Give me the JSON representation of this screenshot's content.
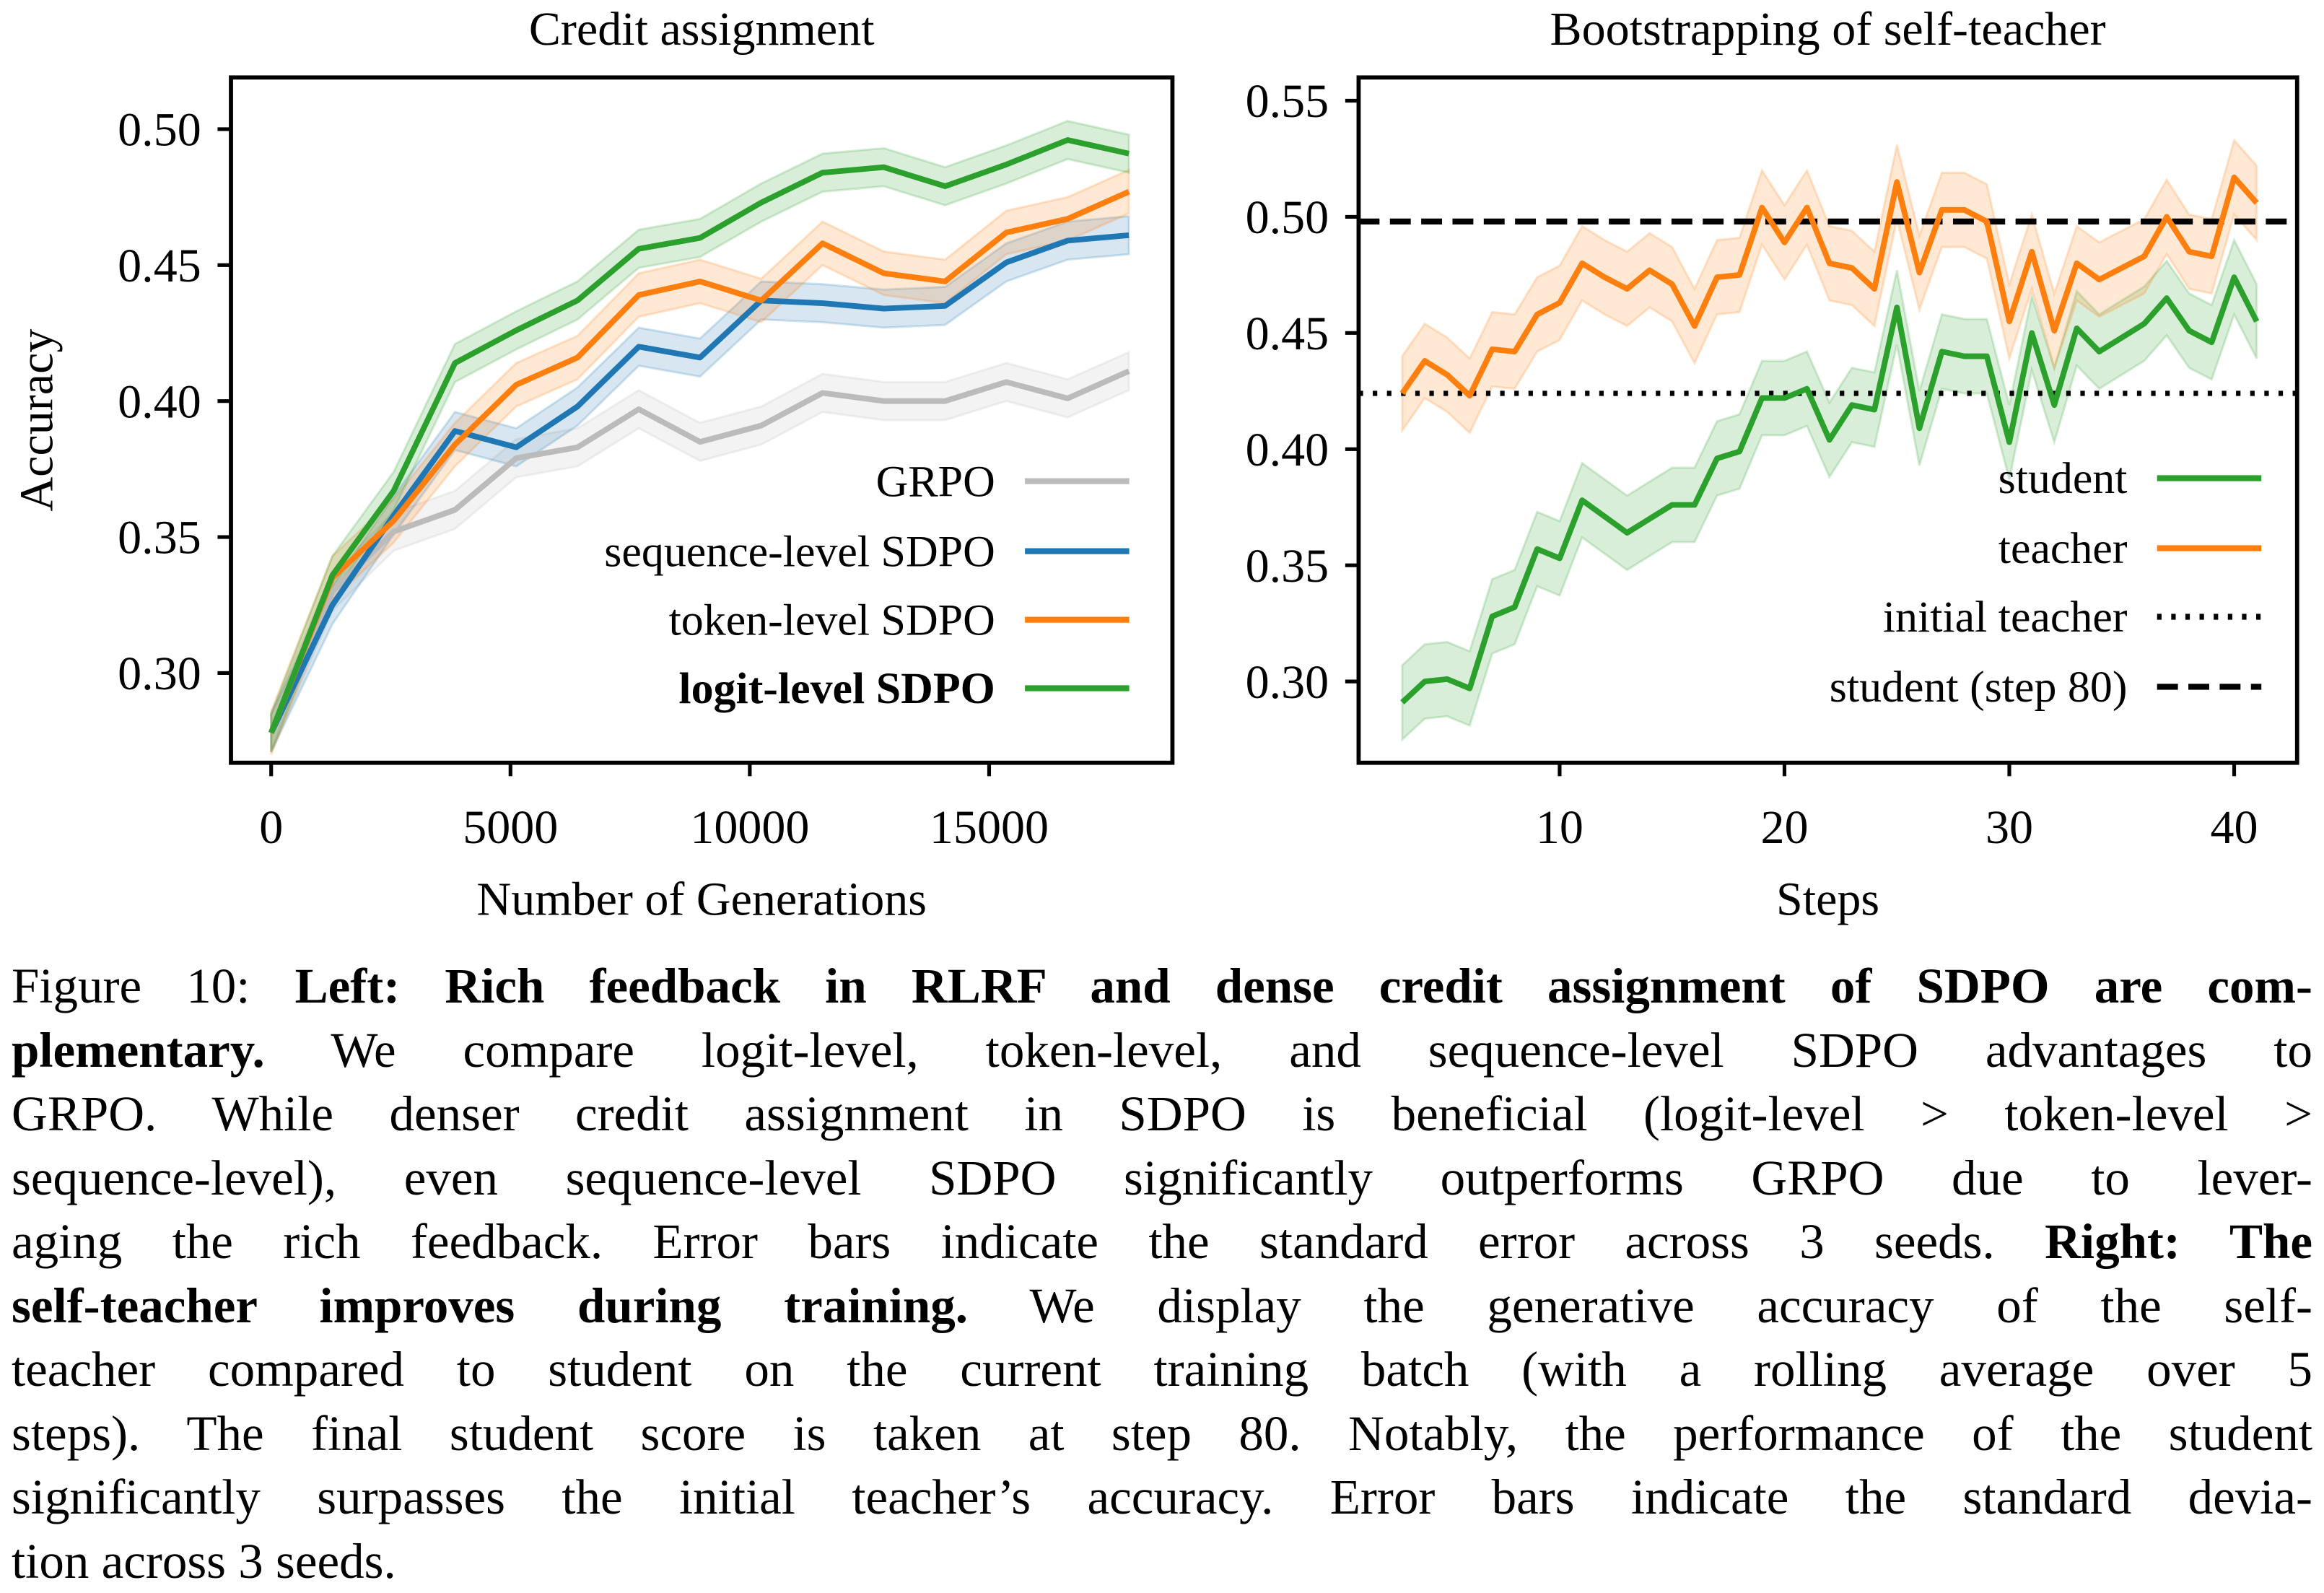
{
  "chart_data": [
    {
      "type": "line",
      "title": "Credit assignment",
      "xlabel": "Number of Generations",
      "ylabel": "Accuracy",
      "xlim": [
        -840,
        18830
      ],
      "ylim": [
        0.267,
        0.519
      ],
      "xticks": [
        0,
        5000,
        10000,
        15000
      ],
      "xtick_labels": [
        "0",
        "5000",
        "10000",
        "15000"
      ],
      "yticks": [
        0.3,
        0.35,
        0.4,
        0.45,
        0.5
      ],
      "ytick_labels": [
        "0.30",
        "0.35",
        "0.40",
        "0.45",
        "0.50"
      ],
      "legend_position": "lower-right",
      "x": [
        0,
        1280,
        2560,
        3840,
        5120,
        6400,
        7680,
        8960,
        10240,
        11520,
        12800,
        14080,
        15360,
        16640,
        17920
      ],
      "series": [
        {
          "name": "GRPO",
          "color": "#bbbbbb",
          "bold": false,
          "err": 0.007,
          "values": [
            0.278,
            0.33,
            0.352,
            0.36,
            0.379,
            0.383,
            0.397,
            0.385,
            0.391,
            0.403,
            0.4,
            0.4,
            0.407,
            0.401,
            0.411
          ]
        },
        {
          "name": "sequence-level SDPO",
          "color": "#1f77b4",
          "bold": false,
          "err": 0.007,
          "values": [
            0.278,
            0.325,
            0.358,
            0.389,
            0.383,
            0.398,
            0.42,
            0.416,
            0.437,
            0.436,
            0.434,
            0.435,
            0.451,
            0.459,
            0.461
          ]
        },
        {
          "name": "token-level SDPO",
          "color": "#ff7f0e",
          "bold": false,
          "err": 0.008,
          "values": [
            0.278,
            0.335,
            0.356,
            0.384,
            0.406,
            0.416,
            0.439,
            0.444,
            0.437,
            0.458,
            0.447,
            0.444,
            0.462,
            0.467,
            0.477
          ]
        },
        {
          "name": "logit-level SDPO",
          "color": "#2ca02c",
          "bold": true,
          "err": 0.007,
          "values": [
            0.278,
            0.336,
            0.367,
            0.414,
            0.426,
            0.437,
            0.456,
            0.46,
            0.473,
            0.484,
            0.486,
            0.479,
            0.487,
            0.496,
            0.491
          ]
        }
      ]
    },
    {
      "type": "line",
      "title": "Bootstrapping of self-teacher",
      "xlabel": "Steps",
      "ylabel": "",
      "xlim": [
        1.06,
        42.8
      ],
      "ylim": [
        0.265,
        0.56
      ],
      "xticks": [
        10,
        20,
        30,
        40
      ],
      "xtick_labels": [
        "10",
        "20",
        "30",
        "40"
      ],
      "yticks": [
        0.3,
        0.35,
        0.4,
        0.45,
        0.5,
        0.55
      ],
      "ytick_labels": [
        "0.30",
        "0.35",
        "0.40",
        "0.45",
        "0.50",
        "0.55"
      ],
      "legend_position": "lower-right",
      "x": [
        3,
        4,
        5,
        6,
        7,
        8,
        9,
        10,
        11,
        12,
        13,
        14,
        15,
        16,
        17,
        18,
        19,
        20,
        21,
        22,
        23,
        24,
        25,
        26,
        27,
        28,
        29,
        30,
        31,
        32,
        33,
        34,
        35,
        36,
        37,
        38,
        39,
        40,
        41
      ],
      "series": [
        {
          "name": "student",
          "color": "#2ca02c",
          "style": "solid",
          "err": 0.016,
          "values": [
            0.291,
            0.3,
            0.301,
            0.297,
            0.328,
            0.332,
            0.357,
            0.353,
            0.378,
            0.371,
            0.364,
            0.37,
            0.376,
            0.376,
            0.396,
            0.399,
            0.422,
            0.422,
            0.426,
            0.404,
            0.419,
            0.417,
            0.461,
            0.409,
            0.442,
            0.44,
            0.44,
            0.403,
            0.45,
            0.419,
            0.452,
            0.442,
            0.448,
            0.454,
            0.465,
            0.451,
            0.446,
            0.474,
            0.455
          ]
        },
        {
          "name": "teacher",
          "color": "#ff7f0e",
          "style": "solid",
          "err": 0.016,
          "values": [
            0.424,
            0.438,
            0.432,
            0.423,
            0.443,
            0.442,
            0.458,
            0.463,
            0.48,
            0.474,
            0.469,
            0.477,
            0.471,
            0.453,
            0.474,
            0.475,
            0.504,
            0.489,
            0.504,
            0.48,
            0.478,
            0.469,
            0.515,
            0.476,
            0.503,
            0.503,
            0.498,
            0.455,
            0.485,
            0.451,
            0.48,
            0.473,
            0.478,
            0.483,
            0.5,
            0.485,
            0.483,
            0.517,
            0.506
          ]
        }
      ],
      "hlines": [
        {
          "name": "initial teacher",
          "value": 0.424,
          "style": "dotted",
          "color": "#000000"
        },
        {
          "name": "student (step 80)",
          "value": 0.498,
          "style": "dashed",
          "color": "#000000"
        }
      ]
    }
  ],
  "caption": {
    "lines": [
      [
        {
          "t": "Figure 10: "
        },
        {
          "t": "Left: Rich feedback in RLRF and dense credit assignment of SDPO are com-",
          "b": true
        }
      ],
      [
        {
          "t": "plementary.",
          "b": true
        },
        {
          "t": " We compare logit-level, token-level, and sequence-level SDPO advantages to"
        }
      ],
      [
        {
          "t": "GRPO. While denser credit assignment in SDPO is beneficial (logit-level > token-level >"
        }
      ],
      [
        {
          "t": "sequence-level), even sequence-level SDPO significantly outperforms GRPO due to lever-"
        }
      ],
      [
        {
          "t": "aging the rich feedback. Error bars indicate the standard error across 3 seeds. "
        },
        {
          "t": "Right: The",
          "b": true
        }
      ],
      [
        {
          "t": "self-teacher improves during training.",
          "b": true
        },
        {
          "t": "  We display the generative accuracy of the self-"
        }
      ],
      [
        {
          "t": "teacher compared to student on the current training batch (with a rolling average over 5"
        }
      ],
      [
        {
          "t": "steps). The final student score is taken at step 80. Notably, the performance of the student"
        }
      ],
      [
        {
          "t": "significantly surpasses the initial teacher’s accuracy. Error bars indicate the standard devia-"
        }
      ],
      [
        {
          "t": "tion across 3 seeds."
        }
      ]
    ]
  }
}
